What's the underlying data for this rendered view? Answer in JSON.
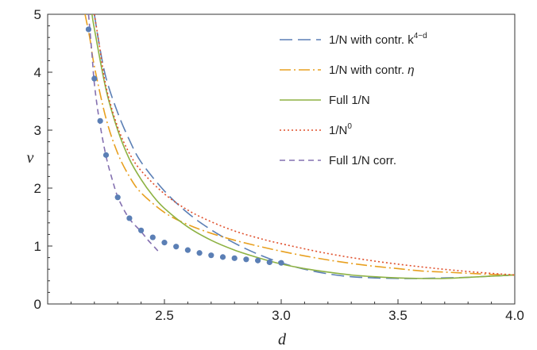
{
  "chart_data": {
    "type": "line",
    "xlabel": "d",
    "ylabel": "ν",
    "xlim": [
      2.0,
      4.0
    ],
    "ylim": [
      0,
      5
    ],
    "x_ticks": [
      2.5,
      3.0,
      3.5,
      4.0
    ],
    "x_tick_labels": [
      "2.5",
      "3.0",
      "3.5",
      "4.0"
    ],
    "y_ticks": [
      0,
      1,
      2,
      3,
      4,
      5
    ],
    "y_tick_labels": [
      "0",
      "1",
      "2",
      "3",
      "4",
      "5"
    ],
    "grid": false,
    "legend_position": "top-right",
    "series": [
      {
        "name": "1/N with contr. k⁴⁻ᵈ",
        "legend_main": "1/N with contr. k",
        "legend_sup": "4−d",
        "style": "long-dashed",
        "color": "#5b7fb5",
        "x": [
          2.2,
          2.22,
          2.25,
          2.3,
          2.35,
          2.4,
          2.5,
          2.6,
          2.7,
          2.8,
          2.9,
          3.0,
          3.1,
          3.2,
          3.3,
          3.4,
          3.5,
          3.6,
          3.7,
          3.8,
          3.9,
          4.0
        ],
        "y": [
          5.0,
          4.5,
          3.9,
          3.3,
          2.83,
          2.45,
          1.95,
          1.57,
          1.28,
          1.05,
          0.86,
          0.71,
          0.6,
          0.52,
          0.47,
          0.45,
          0.44,
          0.44,
          0.45,
          0.46,
          0.48,
          0.5
        ]
      },
      {
        "name": "1/N with contr. η",
        "legend_main": "1/N with contr. ",
        "legend_italic": "η",
        "style": "dash-dot",
        "color": "#e8a020",
        "x": [
          2.16,
          2.18,
          2.2,
          2.25,
          2.3,
          2.35,
          2.4,
          2.5,
          2.6,
          2.7,
          2.8,
          2.9,
          3.0,
          3.1,
          3.2,
          3.3,
          3.4,
          3.5,
          3.6,
          3.7,
          3.8,
          3.9,
          4.0
        ],
        "y": [
          5.0,
          4.6,
          4.1,
          3.2,
          2.6,
          2.2,
          1.92,
          1.58,
          1.37,
          1.22,
          1.1,
          1.0,
          0.91,
          0.83,
          0.76,
          0.7,
          0.65,
          0.61,
          0.57,
          0.55,
          0.53,
          0.51,
          0.5
        ]
      },
      {
        "name": "Full 1/N",
        "style": "solid",
        "color": "#8db243",
        "x": [
          2.19,
          2.2,
          2.25,
          2.3,
          2.35,
          2.4,
          2.45,
          2.5,
          2.6,
          2.7,
          2.8,
          2.9,
          3.0,
          3.1,
          3.2,
          3.3,
          3.4,
          3.5,
          3.6,
          3.7,
          3.8,
          3.9,
          4.0
        ],
        "y": [
          5.0,
          4.75,
          3.7,
          3.0,
          2.5,
          2.15,
          1.87,
          1.65,
          1.33,
          1.1,
          0.93,
          0.8,
          0.69,
          0.61,
          0.55,
          0.5,
          0.47,
          0.45,
          0.44,
          0.44,
          0.46,
          0.48,
          0.5
        ]
      },
      {
        "name": "1/N⁰",
        "legend_main": "1/N",
        "legend_sup": "0",
        "style": "dotted",
        "color": "#e0502c",
        "x": [
          2.2,
          2.22,
          2.25,
          2.3,
          2.35,
          2.4,
          2.5,
          2.6,
          2.7,
          2.8,
          2.9,
          3.0,
          3.2,
          3.4,
          3.6,
          3.8,
          4.0
        ],
        "y": [
          5.0,
          4.5,
          3.75,
          3.05,
          2.6,
          2.3,
          1.9,
          1.62,
          1.42,
          1.26,
          1.14,
          1.04,
          0.87,
          0.74,
          0.64,
          0.56,
          0.5
        ]
      },
      {
        "name": "Full 1/N corr.",
        "style": "short-dashed",
        "color": "#8470b0",
        "x": [
          2.175,
          2.19,
          2.2,
          2.22,
          2.25,
          2.28,
          2.3,
          2.33,
          2.36,
          2.4,
          2.43,
          2.46,
          2.48
        ],
        "y": [
          5.0,
          4.3,
          3.8,
          3.2,
          2.55,
          2.1,
          1.85,
          1.6,
          1.42,
          1.25,
          1.1,
          0.97,
          0.88
        ]
      },
      {
        "name": "",
        "style": "markers",
        "color": "#5b7fb5",
        "x": [
          2.175,
          2.2,
          2.225,
          2.25,
          2.3,
          2.35,
          2.4,
          2.45,
          2.5,
          2.55,
          2.6,
          2.65,
          2.7,
          2.75,
          2.8,
          2.85,
          2.9,
          2.95,
          3.0
        ],
        "y": [
          4.74,
          3.89,
          3.16,
          2.57,
          1.84,
          1.48,
          1.27,
          1.15,
          1.06,
          0.99,
          0.93,
          0.88,
          0.84,
          0.81,
          0.79,
          0.77,
          0.75,
          0.72,
          0.71
        ]
      }
    ]
  }
}
